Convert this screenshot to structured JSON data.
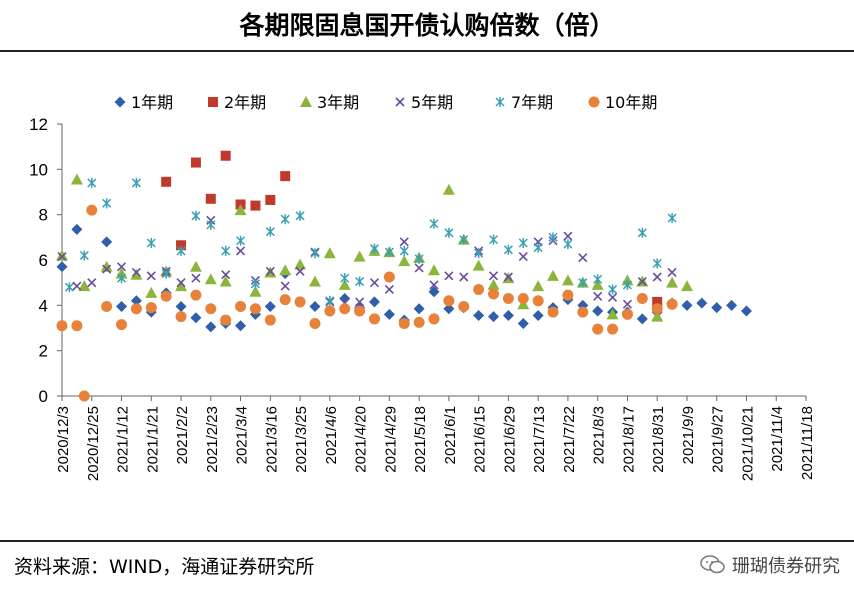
{
  "title": "各期限固息国开债认购倍数（倍）",
  "source": "资料来源：WIND，海通证券研究所",
  "watermark": "珊瑚债券研究",
  "chart_data": {
    "type": "scatter",
    "ylim": [
      0,
      12
    ],
    "yticks": [
      0,
      2,
      4,
      6,
      8,
      10,
      12
    ],
    "grid": false,
    "legend_position": "top",
    "x_tick_labels": [
      "2020/12/3",
      "2020/12/25",
      "2021/1/12",
      "2021/1/21",
      "2021/2/2",
      "2021/2/23",
      "2021/3/4",
      "2021/3/16",
      "2021/3/25",
      "2021/4/6",
      "2021/4/20",
      "2021/4/29",
      "2021/5/18",
      "2021/6/1",
      "2021/6/15",
      "2021/6/29",
      "2021/7/13",
      "2021/7/22",
      "2021/8/3",
      "2021/8/17",
      "2021/8/31",
      "2021/9/9",
      "2021/9/27",
      "2021/10/21",
      "2021/11/4",
      "2021/11/18"
    ],
    "x_range": [
      0,
      50
    ],
    "series": [
      {
        "name": "1年期",
        "marker": "diamond",
        "color": "#2e5fa8",
        "points": [
          [
            0,
            5.7
          ],
          [
            1,
            7.35
          ],
          [
            3,
            6.8
          ],
          [
            4,
            3.95
          ],
          [
            5,
            4.2
          ],
          [
            6,
            3.7
          ],
          [
            7,
            4.55
          ],
          [
            8,
            3.95
          ],
          [
            9,
            3.45
          ],
          [
            10,
            3.05
          ],
          [
            11,
            3.2
          ],
          [
            12,
            3.1
          ],
          [
            13,
            3.6
          ],
          [
            14,
            3.95
          ],
          [
            15,
            5.4
          ],
          [
            16,
            4.15
          ],
          [
            17,
            3.95
          ],
          [
            19,
            4.3
          ],
          [
            20,
            3.9
          ],
          [
            21,
            4.15
          ],
          [
            22,
            3.6
          ],
          [
            23,
            3.35
          ],
          [
            24,
            3.85
          ],
          [
            25,
            4.6
          ],
          [
            26,
            3.85
          ],
          [
            27,
            3.9
          ],
          [
            28,
            3.55
          ],
          [
            29,
            3.5
          ],
          [
            30,
            3.55
          ],
          [
            31,
            3.2
          ],
          [
            32,
            3.55
          ],
          [
            33,
            3.9
          ],
          [
            34,
            4.25
          ],
          [
            35,
            4.0
          ],
          [
            36,
            3.75
          ],
          [
            37,
            3.7
          ],
          [
            38,
            3.7
          ],
          [
            39,
            3.4
          ],
          [
            40,
            3.7
          ],
          [
            41,
            4.1
          ],
          [
            42,
            4.0
          ],
          [
            43,
            4.1
          ],
          [
            44,
            3.9
          ],
          [
            45,
            4.0
          ],
          [
            46,
            3.75
          ]
        ]
      },
      {
        "name": "2年期",
        "marker": "square",
        "color": "#c0392b",
        "points": [
          [
            7,
            9.45
          ],
          [
            8,
            6.65
          ],
          [
            9,
            10.3
          ],
          [
            10,
            8.7
          ],
          [
            11,
            10.6
          ],
          [
            12,
            8.45
          ],
          [
            13,
            8.4
          ],
          [
            14,
            8.65
          ],
          [
            15,
            9.7
          ],
          [
            40,
            4.15
          ]
        ]
      },
      {
        "name": "3年期",
        "marker": "triangle",
        "color": "#8db53c",
        "points": [
          [
            0,
            6.2
          ],
          [
            1,
            9.55
          ],
          [
            1.5,
            4.85
          ],
          [
            3,
            5.7
          ],
          [
            4,
            5.4
          ],
          [
            5,
            5.35
          ],
          [
            6,
            4.55
          ],
          [
            7,
            5.5
          ],
          [
            8,
            4.85
          ],
          [
            9,
            5.7
          ],
          [
            10,
            5.15
          ],
          [
            11,
            5.05
          ],
          [
            12,
            8.2
          ],
          [
            13,
            4.6
          ],
          [
            14,
            5.45
          ],
          [
            15,
            5.55
          ],
          [
            16,
            5.8
          ],
          [
            17,
            5.05
          ],
          [
            18,
            6.3
          ],
          [
            19,
            4.9
          ],
          [
            20,
            6.15
          ],
          [
            21,
            6.4
          ],
          [
            22,
            6.35
          ],
          [
            23,
            5.95
          ],
          [
            24,
            6.1
          ],
          [
            25,
            5.55
          ],
          [
            26,
            9.1
          ],
          [
            27,
            6.9
          ],
          [
            28,
            5.75
          ],
          [
            29,
            4.9
          ],
          [
            30,
            5.2
          ],
          [
            31,
            4.05
          ],
          [
            32,
            4.85
          ],
          [
            33,
            5.3
          ],
          [
            34,
            5.1
          ],
          [
            35,
            5.0
          ],
          [
            36,
            4.9
          ],
          [
            37,
            3.6
          ],
          [
            38,
            5.1
          ],
          [
            39,
            5.05
          ],
          [
            40,
            3.5
          ],
          [
            41,
            5.0
          ],
          [
            42,
            4.85
          ]
        ]
      },
      {
        "name": "5年期",
        "marker": "x",
        "color": "#6a4c9c",
        "points": [
          [
            0,
            6.15
          ],
          [
            1,
            4.85
          ],
          [
            2,
            5.0
          ],
          [
            3,
            5.6
          ],
          [
            4,
            5.7
          ],
          [
            5,
            5.45
          ],
          [
            6,
            5.3
          ],
          [
            7,
            5.5
          ],
          [
            8,
            5.0
          ],
          [
            9,
            5.2
          ],
          [
            10,
            7.75
          ],
          [
            11,
            5.35
          ],
          [
            12,
            6.4
          ],
          [
            13,
            5.1
          ],
          [
            14,
            5.5
          ],
          [
            15,
            4.85
          ],
          [
            16,
            5.5
          ],
          [
            17,
            6.35
          ],
          [
            18,
            4.15
          ],
          [
            19,
            4.1
          ],
          [
            20,
            4.15
          ],
          [
            21,
            5.0
          ],
          [
            22,
            4.7
          ],
          [
            23,
            6.8
          ],
          [
            24,
            5.65
          ],
          [
            25,
            4.9
          ],
          [
            26,
            5.3
          ],
          [
            27,
            5.25
          ],
          [
            28,
            6.4
          ],
          [
            29,
            5.3
          ],
          [
            30,
            5.25
          ],
          [
            31,
            6.15
          ],
          [
            32,
            6.8
          ],
          [
            33,
            6.85
          ],
          [
            34,
            7.05
          ],
          [
            35,
            6.1
          ],
          [
            36,
            4.4
          ],
          [
            37,
            4.35
          ],
          [
            38,
            4.05
          ],
          [
            39,
            5.05
          ],
          [
            40,
            5.25
          ],
          [
            41,
            5.45
          ]
        ]
      },
      {
        "name": "7年期",
        "marker": "asterisk",
        "color": "#3aa0b5",
        "points": [
          [
            0.5,
            4.8
          ],
          [
            1.5,
            6.2
          ],
          [
            2,
            9.4
          ],
          [
            3,
            8.5
          ],
          [
            4,
            5.2
          ],
          [
            5,
            9.4
          ],
          [
            6,
            6.75
          ],
          [
            7,
            5.4
          ],
          [
            8,
            6.4
          ],
          [
            9,
            7.95
          ],
          [
            10,
            7.55
          ],
          [
            11,
            6.4
          ],
          [
            12,
            6.85
          ],
          [
            13,
            4.95
          ],
          [
            14,
            7.25
          ],
          [
            15,
            7.8
          ],
          [
            16,
            7.95
          ],
          [
            17,
            6.3
          ],
          [
            18,
            4.2
          ],
          [
            19,
            5.2
          ],
          [
            20,
            5.05
          ],
          [
            21,
            6.5
          ],
          [
            22,
            6.35
          ],
          [
            23,
            6.4
          ],
          [
            24,
            6.05
          ],
          [
            25,
            7.6
          ],
          [
            26,
            7.2
          ],
          [
            27,
            6.9
          ],
          [
            28,
            6.3
          ],
          [
            29,
            6.9
          ],
          [
            30,
            6.45
          ],
          [
            31,
            6.75
          ],
          [
            32,
            6.55
          ],
          [
            33,
            7.0
          ],
          [
            34,
            6.7
          ],
          [
            35,
            5.0
          ],
          [
            36,
            5.15
          ],
          [
            37,
            4.7
          ],
          [
            38,
            4.9
          ],
          [
            39,
            7.2
          ],
          [
            40,
            5.85
          ],
          [
            41,
            7.85
          ]
        ]
      },
      {
        "name": "10年期",
        "marker": "circle",
        "color": "#e8823a",
        "points": [
          [
            0,
            3.1
          ],
          [
            1,
            3.1
          ],
          [
            1.5,
            0.0
          ],
          [
            2,
            8.2
          ],
          [
            3,
            3.95
          ],
          [
            4,
            3.15
          ],
          [
            5,
            3.85
          ],
          [
            6,
            3.9
          ],
          [
            7,
            4.4
          ],
          [
            8,
            3.5
          ],
          [
            9,
            4.45
          ],
          [
            10,
            3.85
          ],
          [
            11,
            3.35
          ],
          [
            12,
            3.95
          ],
          [
            13,
            3.85
          ],
          [
            14,
            3.35
          ],
          [
            15,
            4.25
          ],
          [
            16,
            4.15
          ],
          [
            17,
            3.2
          ],
          [
            18,
            3.75
          ],
          [
            19,
            3.85
          ],
          [
            20,
            3.75
          ],
          [
            21,
            3.4
          ],
          [
            22,
            5.25
          ],
          [
            23,
            3.2
          ],
          [
            24,
            3.25
          ],
          [
            25,
            3.4
          ],
          [
            26,
            4.2
          ],
          [
            27,
            3.95
          ],
          [
            28,
            4.7
          ],
          [
            29,
            4.5
          ],
          [
            30,
            4.3
          ],
          [
            31,
            4.3
          ],
          [
            32,
            4.2
          ],
          [
            33,
            3.7
          ],
          [
            34,
            4.45
          ],
          [
            35,
            3.7
          ],
          [
            36,
            2.95
          ],
          [
            37,
            2.95
          ],
          [
            38,
            3.6
          ],
          [
            39,
            4.3
          ],
          [
            40,
            3.85
          ],
          [
            41,
            4.05
          ]
        ]
      }
    ]
  }
}
